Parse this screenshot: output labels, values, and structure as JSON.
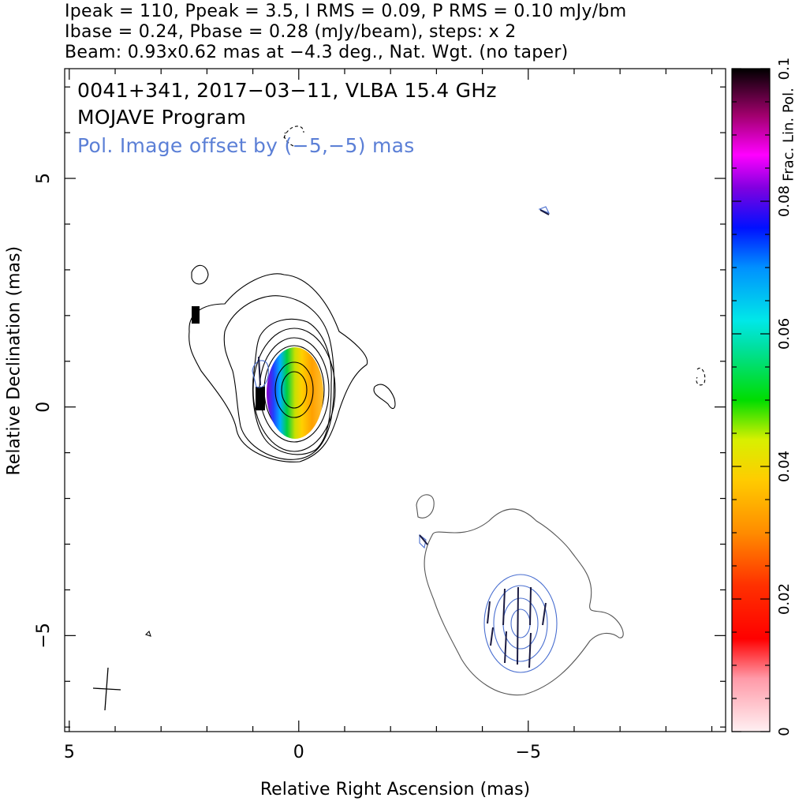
{
  "header": {
    "line1": "Ipeak = 110, Ppeak = 3.5, I RMS = 0.09, P RMS = 0.10 mJy/bm",
    "line2": "Ibase = 0.24, Pbase = 0.28 (mJy/beam), steps: x 2",
    "line3": "Beam: 0.93x0.62 mas at −4.3 deg., Nat. Wgt. (no taper)"
  },
  "annotations": {
    "source": "0041+341, 2017−03−11, VLBA 15.4 GHz",
    "program": "MOJAVE Program",
    "offset_note": "Pol. Image offset by (−5,−5) mas",
    "offset_color": "#5b7fd6"
  },
  "chart_data": {
    "type": "heatmap",
    "xlabel": "Relative Right Ascension (mas)",
    "ylabel": "Relative Declination (mas)",
    "xlim": [
      5.1,
      -9.3
    ],
    "ylim": [
      -7.1,
      7.4
    ],
    "x_ticks": [
      5,
      0,
      -5
    ],
    "x_tick_labels": [
      "5",
      "0",
      "−5"
    ],
    "y_ticks": [
      5,
      0,
      -5
    ],
    "y_tick_labels": [
      "5",
      "0",
      "−5"
    ],
    "colorbar": {
      "label": "Frac. Lin. Pol.",
      "range": [
        0,
        0.1
      ],
      "ticks": [
        0,
        0.02,
        0.04,
        0.06,
        0.08,
        0.1
      ],
      "tick_labels": [
        "0",
        "0.02",
        "0.04",
        "0.06",
        "0.08",
        "0.1"
      ]
    },
    "total_intensity_contours": {
      "center": [
        0,
        0
      ],
      "peak_mJy_per_beam": 110,
      "base_mJy_per_beam": 0.24,
      "step_factor": 2
    },
    "polarization_contours": {
      "offset_mas": [
        -5,
        -5
      ],
      "peak_mJy_per_beam": 3.5,
      "base_mJy_per_beam": 0.28
    },
    "beam": {
      "major_mas": 0.93,
      "minor_mas": 0.62,
      "pa_deg": -4.3,
      "position": [
        4.1,
        -6.3
      ]
    }
  }
}
